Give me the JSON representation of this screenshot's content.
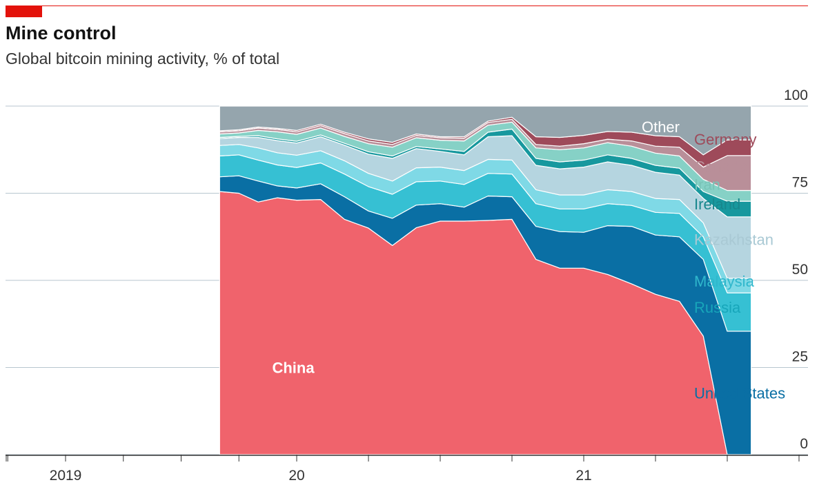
{
  "header": {
    "title": "Mine control",
    "subtitle": "Global bitcoin mining activity, % of total"
  },
  "colors": {
    "accent": "#e3120b",
    "China": "#f0636c",
    "United States": "#0a6fa4",
    "Russia": "#36c0d3",
    "Malaysia": "#7fd9e6",
    "Kazakhstan": "#b5d5e0",
    "Ireland": "#17989e",
    "Iran": "#86d1c6",
    "Canada": "#b98f99",
    "Germany": "#9e4a5a",
    "Other": "#95a5ad"
  },
  "chart_data": {
    "type": "area",
    "stacked": true,
    "title": "Mine control",
    "subtitle": "Global bitcoin mining activity, % of total",
    "ylim": [
      0,
      100
    ],
    "yticks": [
      0,
      25,
      50,
      75,
      100
    ],
    "ytick_labels": [
      "0",
      "25",
      "50",
      "75",
      "100"
    ],
    "xlim": [
      2018.67,
      2021.75
    ],
    "xticks": [
      2019,
      2020,
      2021
    ],
    "xtick_labels": [
      "2019",
      "20",
      "21"
    ],
    "x": [
      "2019-09",
      "2019-10",
      "2019-11",
      "2019-12",
      "2020-01",
      "2020-02",
      "2020-03",
      "2020-04",
      "2020-05",
      "2020-06",
      "2020-07",
      "2020-08",
      "2020-09",
      "2020-10",
      "2020-11",
      "2020-12",
      "2021-01",
      "2021-02",
      "2021-03",
      "2021-04",
      "2021-05",
      "2021-06",
      "2021-07",
      "2021-08"
    ],
    "series": [
      {
        "name": "China",
        "values": [
          75.5,
          75.0,
          72.5,
          73.7,
          73.0,
          73.2,
          67.5,
          65.0,
          60.0,
          65.1,
          67.0,
          67.0,
          67.2,
          67.5,
          56.0,
          53.5,
          53.5,
          51.7,
          49.0,
          46.0,
          44.0,
          34.0,
          0.0,
          0.0
        ]
      },
      {
        "name": "United States",
        "values": [
          4.2,
          5.0,
          6.0,
          3.4,
          3.5,
          4.5,
          6.5,
          4.9,
          7.8,
          6.5,
          5.0,
          4.0,
          7.0,
          6.5,
          9.5,
          10.5,
          10.3,
          14.0,
          16.5,
          17.0,
          18.5,
          22.0,
          35.4,
          35.4
        ]
      },
      {
        "name": "Russia",
        "values": [
          6.0,
          6.0,
          6.0,
          6.0,
          5.9,
          6.0,
          6.5,
          7.0,
          6.9,
          6.7,
          6.5,
          6.5,
          6.5,
          6.5,
          6.5,
          6.5,
          6.7,
          6.3,
          6.0,
          6.5,
          6.7,
          6.5,
          11.0,
          11.0
        ]
      },
      {
        "name": "Malaysia",
        "values": [
          3.0,
          3.0,
          3.5,
          3.5,
          3.5,
          3.5,
          3.8,
          3.8,
          3.8,
          4.0,
          4.0,
          4.0,
          4.0,
          4.0,
          4.0,
          4.0,
          4.0,
          4.0,
          4.0,
          4.0,
          4.0,
          4.0,
          4.2,
          4.2
        ]
      },
      {
        "name": "Kazakhstan",
        "values": [
          2.0,
          2.0,
          3.0,
          3.5,
          3.5,
          4.0,
          4.5,
          5.5,
          6.5,
          5.5,
          4.5,
          4.5,
          6.5,
          7.0,
          7.0,
          7.5,
          8.0,
          8.0,
          7.5,
          7.5,
          7.0,
          7.0,
          17.6,
          17.6
        ]
      },
      {
        "name": "Ireland",
        "values": [
          0.3,
          0.3,
          0.5,
          0.5,
          0.5,
          0.5,
          0.5,
          0.7,
          0.7,
          0.6,
          0.7,
          1.0,
          1.3,
          1.9,
          2.0,
          2.0,
          2.0,
          2.0,
          2.0,
          2.0,
          2.0,
          2.0,
          4.5,
          4.5
        ]
      },
      {
        "name": "Iran",
        "values": [
          1.0,
          1.0,
          1.5,
          2.0,
          2.0,
          2.0,
          2.0,
          2.3,
          2.5,
          2.5,
          2.5,
          3.0,
          2.0,
          2.0,
          3.0,
          3.5,
          3.5,
          3.5,
          3.5,
          3.5,
          3.5,
          3.5,
          3.1,
          3.1
        ]
      },
      {
        "name": "Canada",
        "values": [
          0.6,
          0.6,
          0.7,
          0.7,
          0.7,
          0.7,
          0.8,
          0.8,
          0.8,
          0.7,
          0.7,
          0.8,
          0.8,
          0.8,
          1.0,
          1.0,
          1.2,
          1.0,
          1.5,
          2.0,
          2.5,
          3.5,
          10.0,
          10.0
        ]
      },
      {
        "name": "Germany",
        "values": [
          0.3,
          0.3,
          0.3,
          0.3,
          0.4,
          0.4,
          0.4,
          0.6,
          0.6,
          0.4,
          0.3,
          0.4,
          0.4,
          0.6,
          2.2,
          2.5,
          2.4,
          2.2,
          2.5,
          3.0,
          3.0,
          3.5,
          4.5,
          4.5
        ]
      },
      {
        "name": "Other",
        "values": [
          7.1,
          6.8,
          6.0,
          6.4,
          7.0,
          5.2,
          7.5,
          9.4,
          10.4,
          8.0,
          8.8,
          8.8,
          4.3,
          3.2,
          8.8,
          9.0,
          8.4,
          7.3,
          7.5,
          8.5,
          8.8,
          14.0,
          9.7,
          9.7
        ]
      }
    ]
  }
}
